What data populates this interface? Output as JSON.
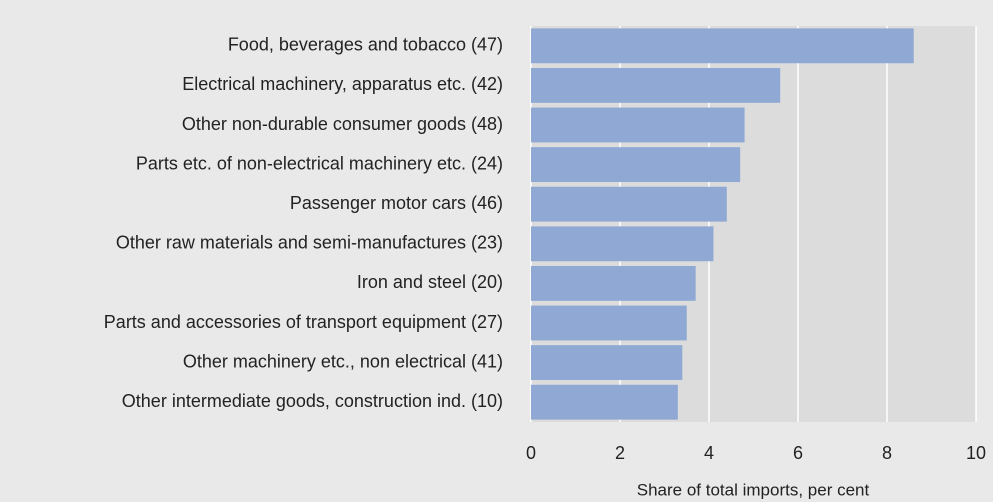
{
  "chart_data": {
    "type": "barh",
    "categories": [
      "Food, beverages and tobacco  (47)",
      "Electrical machinery, apparatus etc. (42)",
      "Other non-durable consumer goods (48)",
      "Parts etc. of non-electrical machinery etc. (24)",
      "Passenger motor cars (46)",
      "Other raw materials and semi-manufactures (23)",
      "Iron and steel (20)",
      "Parts and accessories of transport equipment (27)",
      "Other machinery etc., non electrical (41)",
      "Other intermediate goods, construction ind. (10)"
    ],
    "values": [
      8.6,
      5.6,
      4.8,
      4.7,
      4.4,
      4.1,
      3.7,
      3.5,
      3.4,
      3.3
    ],
    "color": "#8fa9d4",
    "xlim": [
      0,
      10
    ],
    "xticks": [
      0,
      2,
      4,
      6,
      8,
      10
    ],
    "xlabel": "Share of total imports, per cent",
    "grid": true
  }
}
